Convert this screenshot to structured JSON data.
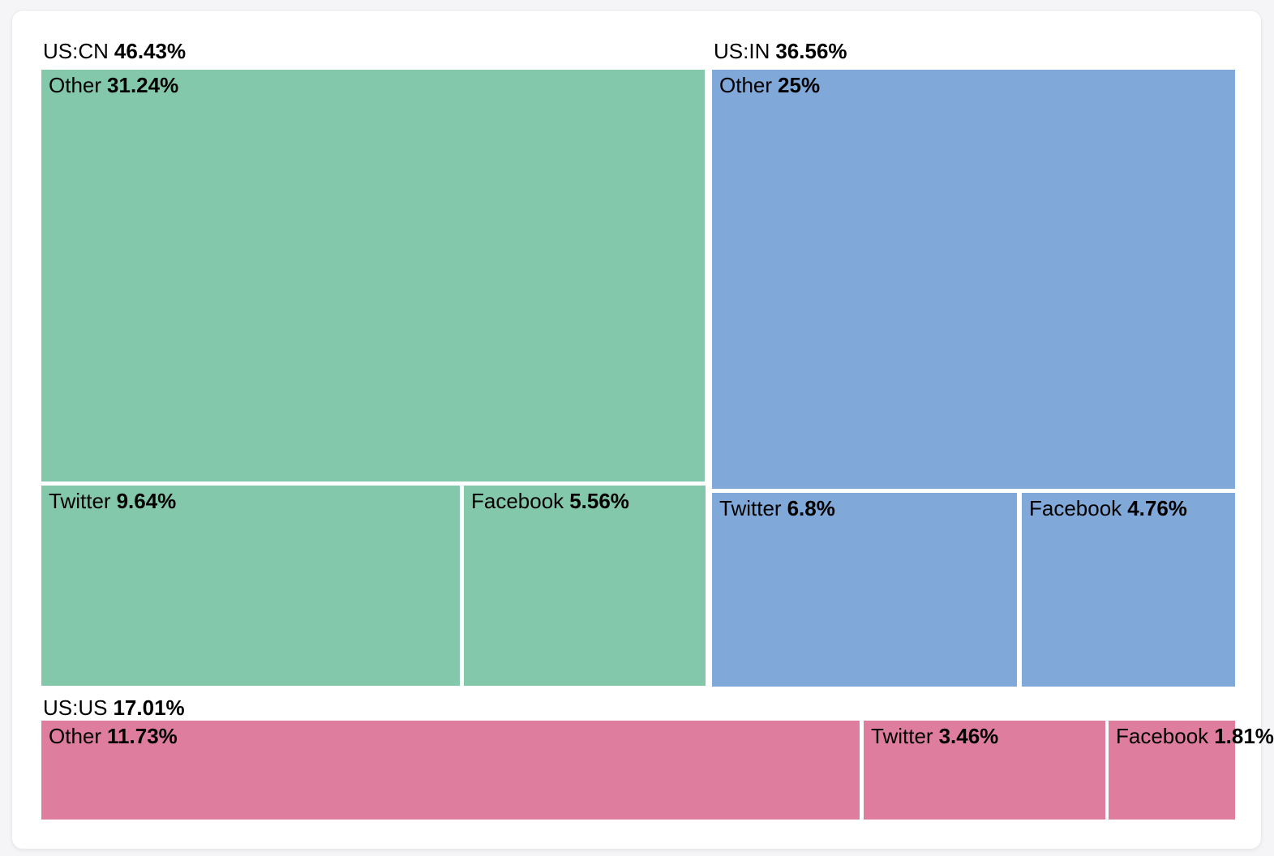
{
  "page": {
    "background_color": "#f5f5f7",
    "card_color": "#ffffff",
    "text_color": "#000000"
  },
  "chart_data": {
    "type": "treemap",
    "title": "",
    "unit": "%",
    "legend_position": "none",
    "total": 100,
    "groups": [
      {
        "label": "US:CN",
        "value": 46.43,
        "value_label": "46.43%",
        "color": "#84c8ac",
        "children": [
          {
            "label": "Other",
            "value": 31.24,
            "value_label": "31.24%"
          },
          {
            "label": "Twitter",
            "value": 9.64,
            "value_label": "9.64%"
          },
          {
            "label": "Facebook",
            "value": 5.56,
            "value_label": "5.56%"
          }
        ]
      },
      {
        "label": "US:IN",
        "value": 36.56,
        "value_label": "36.56%",
        "color": "#80a8d8",
        "children": [
          {
            "label": "Other",
            "value": 25,
            "value_label": "25%"
          },
          {
            "label": "Twitter",
            "value": 6.8,
            "value_label": "6.8%"
          },
          {
            "label": "Facebook",
            "value": 4.76,
            "value_label": "4.76%"
          }
        ]
      },
      {
        "label": "US:US",
        "value": 17.01,
        "value_label": "17.01%",
        "color": "#df7d9e",
        "children": [
          {
            "label": "Other",
            "value": 11.73,
            "value_label": "11.73%"
          },
          {
            "label": "Twitter",
            "value": 3.46,
            "value_label": "3.46%"
          },
          {
            "label": "Facebook",
            "value": 1.81,
            "value_label": "1.81%"
          }
        ]
      }
    ]
  }
}
